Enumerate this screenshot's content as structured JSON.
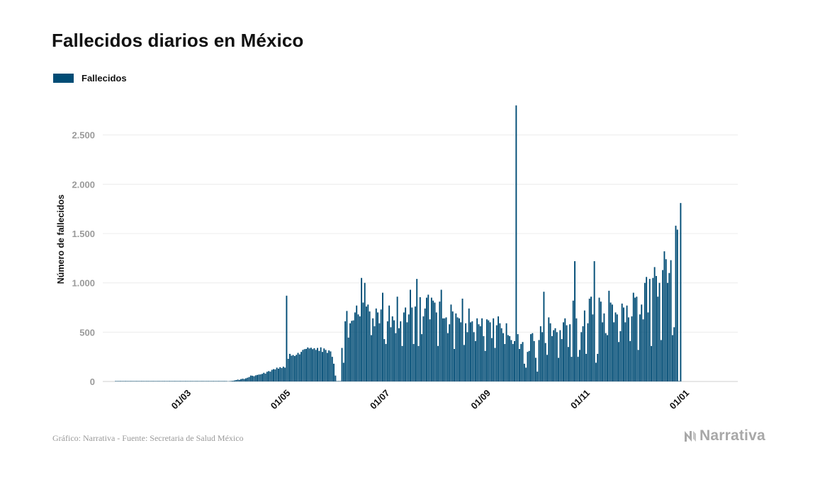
{
  "title": "Fallecidos diarios en México",
  "legend": {
    "label": "Fallecidos",
    "color": "#004c75"
  },
  "footer": {
    "source": "Gráfico: Narrativa - Fuente: Secretaria de Salud México"
  },
  "brand": {
    "name": "Narrativa",
    "icon": "narrativa-logo-icon"
  },
  "chart_data": {
    "type": "bar",
    "title": "Fallecidos diarios en México",
    "xlabel": "",
    "ylabel": "Número de fallecidos",
    "ylim": [
      0,
      2900
    ],
    "yticks": [
      0,
      500,
      1000,
      1500,
      2000,
      2500
    ],
    "ytick_labels": [
      "0",
      "500",
      "1.000",
      "1.500",
      "2.000",
      "2.500"
    ],
    "xticks": [
      "2020-03-01",
      "2020-05-01",
      "2020-07-01",
      "2020-09-01",
      "2020-11-01",
      "2021-01-01"
    ],
    "xtick_labels": [
      "01/03",
      "01/05",
      "01/07",
      "01/09",
      "01/11",
      "01/01"
    ],
    "xlim": [
      "2020-01-10",
      "2021-02-03"
    ],
    "grid": "horizontal",
    "legend_position": "top-left",
    "color": "#004c75",
    "series": [
      {
        "name": "Fallecidos",
        "start_date": "2020-01-18",
        "values": [
          0,
          0,
          0,
          0,
          0,
          0,
          0,
          0,
          0,
          0,
          0,
          0,
          0,
          0,
          0,
          0,
          0,
          0,
          0,
          0,
          0,
          0,
          0,
          0,
          0,
          0,
          0,
          0,
          0,
          0,
          0,
          0,
          0,
          0,
          0,
          0,
          0,
          0,
          0,
          0,
          0,
          0,
          0,
          0,
          0,
          0,
          0,
          0,
          0,
          0,
          0,
          0,
          0,
          0,
          0,
          0,
          0,
          0,
          0,
          0,
          0,
          0,
          0,
          0,
          0,
          0,
          0,
          0,
          0,
          2,
          3,
          5,
          7,
          10,
          14,
          19,
          16,
          24,
          28,
          25,
          32,
          38,
          45,
          60,
          58,
          53,
          62,
          66,
          70,
          72,
          77,
          88,
          80,
          98,
          105,
          100,
          118,
          125,
          122,
          140,
          130,
          145,
          136,
          150,
          140,
          870,
          230,
          280,
          262,
          268,
          258,
          270,
          290,
          275,
          300,
          320,
          328,
          330,
          345,
          335,
          342,
          328,
          337,
          320,
          340,
          310,
          346,
          300,
          335,
          320,
          290,
          315,
          305,
          250,
          180,
          60,
          0,
          0,
          0,
          340,
          190,
          610,
          715,
          445,
          590,
          615,
          620,
          700,
          770,
          680,
          660,
          1050,
          800,
          1000,
          760,
          780,
          710,
          470,
          640,
          560,
          740,
          700,
          590,
          730,
          900,
          430,
          380,
          610,
          770,
          550,
          660,
          620,
          490,
          860,
          540,
          610,
          360,
          700,
          750,
          600,
          680,
          930,
          750,
          380,
          760,
          1040,
          360,
          855,
          480,
          660,
          740,
          850,
          880,
          630,
          850,
          820,
          800,
          700,
          360,
          810,
          930,
          640,
          640,
          650,
          490,
          580,
          780,
          710,
          330,
          690,
          650,
          640,
          600,
          840,
          370,
          590,
          500,
          740,
          600,
          610,
          500,
          410,
          640,
          580,
          560,
          640,
          460,
          310,
          630,
          620,
          600,
          440,
          640,
          340,
          570,
          660,
          590,
          540,
          490,
          380,
          590,
          470,
          460,
          420,
          380,
          410,
          2800,
          480,
          330,
          380,
          400,
          180,
          140,
          300,
          310,
          480,
          490,
          410,
          240,
          100,
          420,
          560,
          500,
          910,
          390,
          270,
          650,
          590,
          460,
          520,
          540,
          500,
          240,
          520,
          430,
          600,
          640,
          570,
          350,
          580,
          250,
          820,
          1220,
          640,
          250,
          320,
          500,
          560,
          720,
          280,
          590,
          840,
          860,
          680,
          1220,
          190,
          280,
          850,
          810,
          600,
          690,
          490,
          470,
          920,
          800,
          780,
          600,
          700,
          680,
          400,
          510,
          790,
          750,
          600,
          770,
          650,
          410,
          660,
          900,
          850,
          860,
          320,
          680,
          780,
          630,
          1000,
          1060,
          700,
          1040,
          360,
          1050,
          1160,
          1070,
          860,
          1000,
          420,
          1130,
          1320,
          1240,
          1000,
          1100,
          1230,
          470,
          550,
          1580,
          1540,
          0,
          1810
        ]
      }
    ]
  }
}
